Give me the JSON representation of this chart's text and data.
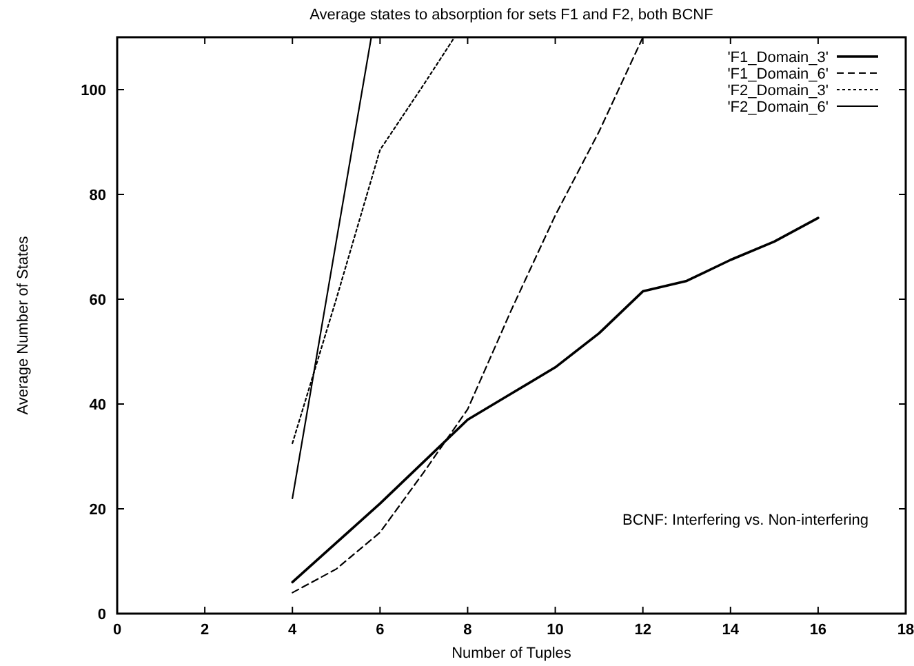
{
  "chart_data": {
    "type": "line",
    "title": "Average states to absorption for sets F1 and F2, both BCNF",
    "xlabel": "Number of Tuples",
    "ylabel": "Average Number of States",
    "xlim": [
      0,
      18
    ],
    "xticks": [
      0,
      2,
      4,
      6,
      8,
      10,
      12,
      14,
      16,
      18
    ],
    "ylim": [
      0,
      110
    ],
    "yticks": [
      0,
      20,
      40,
      60,
      80,
      100
    ],
    "grid": false,
    "legend": "top right",
    "annotations": [
      "BCNF: Interfering vs. Non-interfering"
    ],
    "series": [
      {
        "name": "'F1_Domain_3'",
        "color": "#000000",
        "line_style": "solid",
        "x": [
          4,
          5,
          6,
          7,
          8,
          9,
          10,
          11,
          12,
          13,
          14,
          15,
          16
        ],
        "values": [
          6,
          13.5,
          21,
          29,
          37,
          42,
          47,
          53.5,
          61.5,
          63.5,
          67.5,
          71,
          75.5
        ]
      },
      {
        "name": "'F1_Domain_6'",
        "color": "#000000",
        "line_style": "dashed",
        "x": [
          4,
          5,
          6,
          7,
          8,
          9,
          10,
          11,
          12
        ],
        "values": [
          4,
          8.5,
          15.5,
          27,
          39,
          58,
          76,
          92,
          110
        ]
      },
      {
        "name": "'F2_Domain_3'",
        "color": "#000000",
        "line_style": "dotted",
        "x": [
          4,
          5,
          6,
          7,
          7.7
        ],
        "values": [
          32.5,
          60,
          88.5,
          101,
          110
        ]
      },
      {
        "name": "'F2_Domain_6'",
        "color": "#000000",
        "line_style": "solid",
        "x": [
          4,
          5,
          5.8
        ],
        "values": [
          22,
          71,
          110
        ]
      }
    ]
  }
}
